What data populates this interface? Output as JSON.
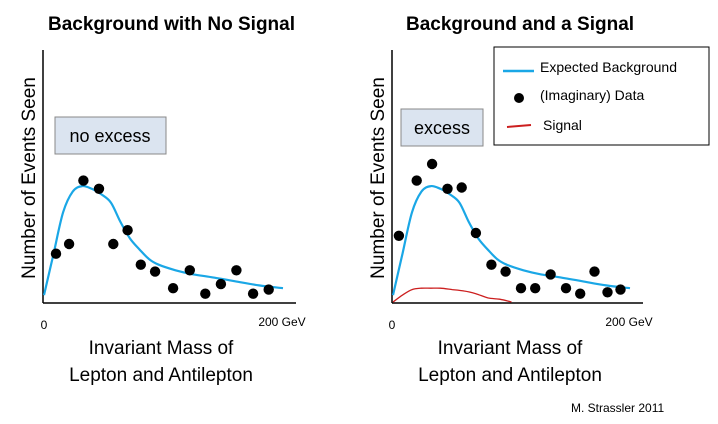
{
  "chart_data": [
    {
      "type": "scatter",
      "title": "Background with No Signal",
      "ylabel": "Number of Events Seen",
      "xlabel_line1": "Invariant Mass of",
      "xlabel_line2": "Lepton and Antilepton",
      "x_tick_min": "0",
      "x_tick_max": "200 GeV",
      "xlim": [
        0,
        200
      ],
      "ylim": [
        0,
        100
      ],
      "annotation": "no excess",
      "background_curve": {
        "x": [
          0,
          8,
          16,
          24,
          32,
          40,
          48,
          56,
          64,
          72,
          80,
          88,
          96,
          110,
          125,
          140,
          160,
          180,
          200
        ],
        "y": [
          5,
          35,
          65,
          80,
          84,
          82,
          78,
          72,
          58,
          46,
          38,
          31,
          27,
          23,
          20,
          18,
          15,
          12,
          10
        ]
      },
      "data_points": {
        "x": [
          10,
          21,
          33,
          46,
          58,
          70,
          81,
          93,
          108,
          122,
          135,
          148,
          161,
          175,
          188
        ],
        "y": [
          35,
          42,
          88,
          82,
          42,
          52,
          27,
          22,
          10,
          23,
          6,
          13,
          23,
          6,
          9
        ]
      }
    },
    {
      "type": "scatter",
      "title": "Background and a Signal",
      "ylabel": "Number of Events Seen",
      "xlabel_line1": "Invariant Mass of",
      "xlabel_line2": "Lepton and Antilepton",
      "x_tick_min": "0",
      "x_tick_max": "200 GeV",
      "xlim": [
        0,
        200
      ],
      "ylim": [
        0,
        100
      ],
      "annotation": "excess",
      "legend": {
        "placement": "top-right",
        "items": [
          {
            "label": "Expected Background",
            "symbol": "line",
            "color": "#1aa7e6"
          },
          {
            "label": "(Imaginary) Data",
            "symbol": "dot",
            "color": "#000000"
          },
          {
            "label": "Signal",
            "symbol": "line",
            "color": "#cc1f1f"
          }
        ]
      },
      "background_curve": {
        "x": [
          0,
          8,
          16,
          24,
          32,
          40,
          48,
          56,
          64,
          72,
          80,
          88,
          96,
          110,
          125,
          140,
          160,
          180,
          200
        ],
        "y": [
          5,
          35,
          65,
          80,
          84,
          82,
          78,
          72,
          58,
          46,
          38,
          31,
          27,
          23,
          20,
          18,
          15,
          12,
          10
        ]
      },
      "signal_curve": {
        "x": [
          0,
          8,
          16,
          24,
          32,
          40,
          50,
          60,
          70,
          80,
          90,
          100
        ],
        "y": [
          0,
          5,
          9,
          10,
          10,
          10,
          9,
          8,
          6,
          3,
          2,
          0
        ]
      },
      "data_points": {
        "x": [
          5,
          20,
          33,
          46,
          58,
          70,
          83,
          95,
          108,
          120,
          133,
          146,
          158,
          170,
          181,
          192
        ],
        "y": [
          48,
          88,
          100,
          82,
          83,
          50,
          27,
          22,
          10,
          10,
          20,
          10,
          6,
          22,
          7,
          9
        ]
      }
    }
  ],
  "credit": "M. Strassler 2011"
}
